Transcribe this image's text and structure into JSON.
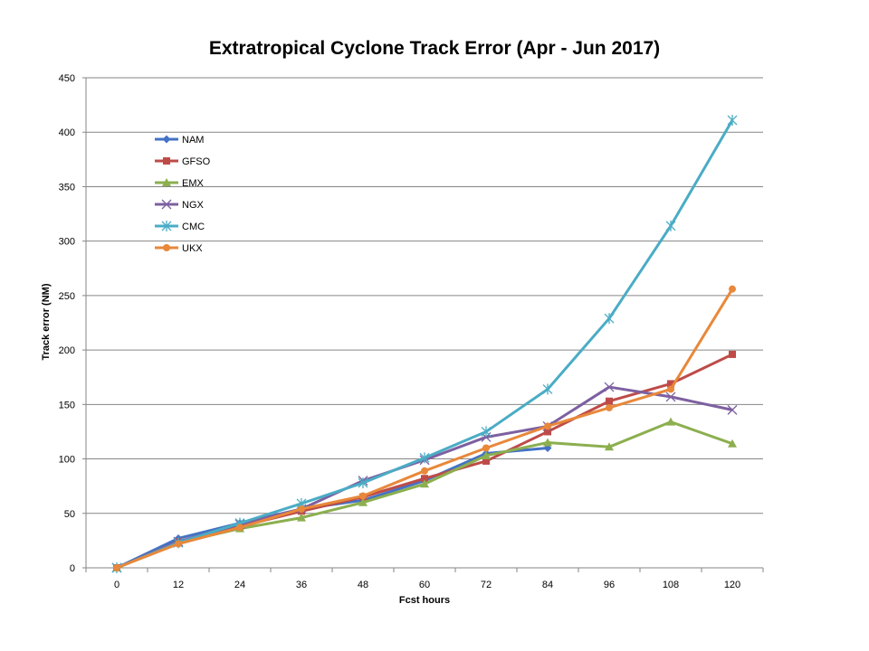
{
  "chart_data": {
    "type": "line",
    "title": "Extratropical Cyclone Track Error (Apr - Jun 2017)",
    "xlabel": "Fcst hours",
    "ylabel": "Track error  (NM)",
    "categories": [
      "0",
      "12",
      "24",
      "36",
      "48",
      "60",
      "72",
      "84",
      "96",
      "108",
      "120"
    ],
    "ylim": [
      0,
      450
    ],
    "yticks": [
      0,
      50,
      100,
      150,
      200,
      250,
      300,
      350,
      400,
      450
    ],
    "grid": true,
    "legend_position": "top-left inside plot",
    "series": [
      {
        "name": "NAM",
        "color": "#4472C4",
        "marker": "diamond",
        "values": [
          0,
          27,
          41,
          54,
          62,
          80,
          105,
          110,
          null,
          null,
          null
        ]
      },
      {
        "name": "GFSO",
        "color": "#BE4B48",
        "marker": "square",
        "values": [
          0,
          24,
          38,
          52,
          65,
          82,
          98,
          125,
          153,
          169,
          196
        ]
      },
      {
        "name": "EMX",
        "color": "#8CAF4F",
        "marker": "triangle",
        "values": [
          0,
          23,
          36,
          46,
          60,
          77,
          103,
          115,
          111,
          134,
          114
        ]
      },
      {
        "name": "NGX",
        "color": "#7D60A0",
        "marker": "x",
        "values": [
          0,
          24,
          40,
          54,
          80,
          99,
          120,
          130,
          166,
          157,
          145
        ]
      },
      {
        "name": "CMC",
        "color": "#4AACC5",
        "marker": "star",
        "values": [
          0,
          23,
          41,
          59,
          78,
          101,
          125,
          164,
          229,
          314,
          411
        ]
      },
      {
        "name": "UKX",
        "color": "#E8883A",
        "marker": "circle",
        "values": [
          0,
          22,
          37,
          54,
          66,
          89,
          110,
          130,
          147,
          164,
          256
        ]
      }
    ]
  }
}
